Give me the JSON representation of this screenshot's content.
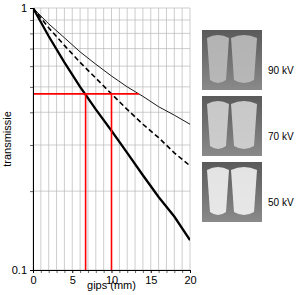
{
  "chart_data": {
    "type": "line",
    "xlabel": "gips (mm)",
    "ylabel": "transmissie",
    "log": "y",
    "grid": true,
    "xlim": [
      0,
      20
    ],
    "ylim": [
      0.1,
      1
    ],
    "xticks": [
      0,
      {
        "value": 1,
        "label": null
      },
      {
        "value": 2,
        "label": null
      },
      {
        "value": 3,
        "label": null
      },
      {
        "value": 4,
        "label": null
      },
      5,
      {
        "value": 6,
        "label": null
      },
      {
        "value": 7,
        "label": null
      },
      {
        "value": 8,
        "label": null
      },
      {
        "value": 9,
        "label": null
      },
      10,
      {
        "value": 11,
        "label": null
      },
      {
        "value": 12,
        "label": null
      },
      {
        "value": 13,
        "label": null
      },
      {
        "value": 14,
        "label": null
      },
      15,
      {
        "value": 16,
        "label": null
      },
      {
        "value": 17,
        "label": null
      },
      {
        "value": 18,
        "label": null
      },
      {
        "value": 19,
        "label": null
      },
      20
    ],
    "yticks": [
      0.1,
      {
        "value": 0.2,
        "label": null
      },
      {
        "value": 0.3,
        "label": null
      },
      {
        "value": 0.4,
        "label": null
      },
      {
        "value": 0.5,
        "label": null
      },
      {
        "value": 0.6,
        "label": null
      },
      {
        "value": 0.7,
        "label": null
      },
      {
        "value": 0.8,
        "label": null
      },
      {
        "value": 0.9,
        "label": null
      },
      1
    ],
    "x": [
      0,
      2,
      4,
      6,
      8,
      10,
      12,
      14,
      16,
      18,
      20
    ],
    "series": [
      {
        "color": "#000000",
        "line_style": "solid",
        "values": [
          1,
          0.87,
          0.77,
          0.68,
          0.61,
          0.55,
          0.5,
          0.46,
          0.42,
          0.39,
          0.36
        ]
      },
      {
        "color": "#000000",
        "line_style": "dashed",
        "values": [
          1,
          0.84,
          0.72,
          0.62,
          0.54,
          0.47,
          0.41,
          0.36,
          0.32,
          0.28,
          0.25
        ]
      },
      {
        "color": "#000000",
        "line_style": "solid",
        "values": [
          1,
          0.78,
          0.62,
          0.5,
          0.41,
          0.34,
          0.28,
          0.23,
          0.19,
          0.16,
          0.13
        ]
      }
    ],
    "reference_lines": [
      {
        "color": "#ff0000",
        "x": [
          0,
          13.5
        ],
        "y": [
          0.47,
          0.47
        ]
      },
      {
        "color": "#ff0000",
        "x": [
          6.7,
          6.7
        ],
        "y": [
          0.1,
          0.47
        ]
      },
      {
        "color": "#ff0000",
        "x": [
          10,
          10
        ],
        "y": [
          0.1,
          0.47
        ]
      }
    ],
    "annotations": [
      "90 kV",
      "70 kV",
      "50 kV"
    ]
  }
}
